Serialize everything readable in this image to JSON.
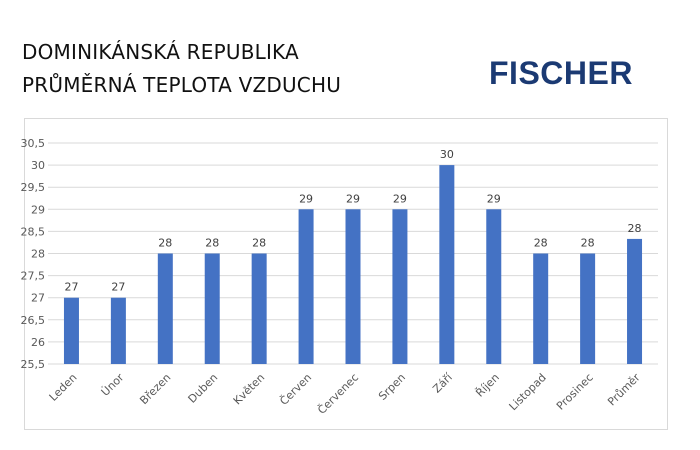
{
  "header": {
    "title_line1": "DOMINIKÁNSKÁ REPUBLIKA",
    "title_line2": "PRŮMĚRNÁ TEPLOTA VZDUCHU",
    "logo_text": "FISCHER"
  },
  "colors": {
    "bar": "#4472c4",
    "grid": "#d9d9d9",
    "logo": "#1b3a73"
  },
  "chart_data": {
    "type": "bar",
    "title": "DOMINIKÁNSKÁ REPUBLIKA PRŮMĚRNÁ TEPLOTA VZDUCHU",
    "xlabel": "",
    "ylabel": "",
    "categories": [
      "Leden",
      "Únor",
      "Březen",
      "Duben",
      "Květen",
      "Červen",
      "Červenec",
      "Srpen",
      "Září",
      "Říjen",
      "Listopad",
      "Prosinec",
      "Průměr"
    ],
    "values": [
      27,
      27,
      28,
      28,
      28,
      29,
      29,
      29,
      30,
      29,
      28,
      28,
      28.33
    ],
    "data_labels": [
      "27",
      "27",
      "28",
      "28",
      "28",
      "29",
      "29",
      "29",
      "30",
      "29",
      "28",
      "28",
      "28"
    ],
    "ylim": [
      25.5,
      30.5
    ],
    "yticks": [
      "25,5",
      "26",
      "26,5",
      "27",
      "27,5",
      "28",
      "28,5",
      "29",
      "29,5",
      "30",
      "30,5"
    ],
    "grid": true,
    "legend": "none"
  }
}
